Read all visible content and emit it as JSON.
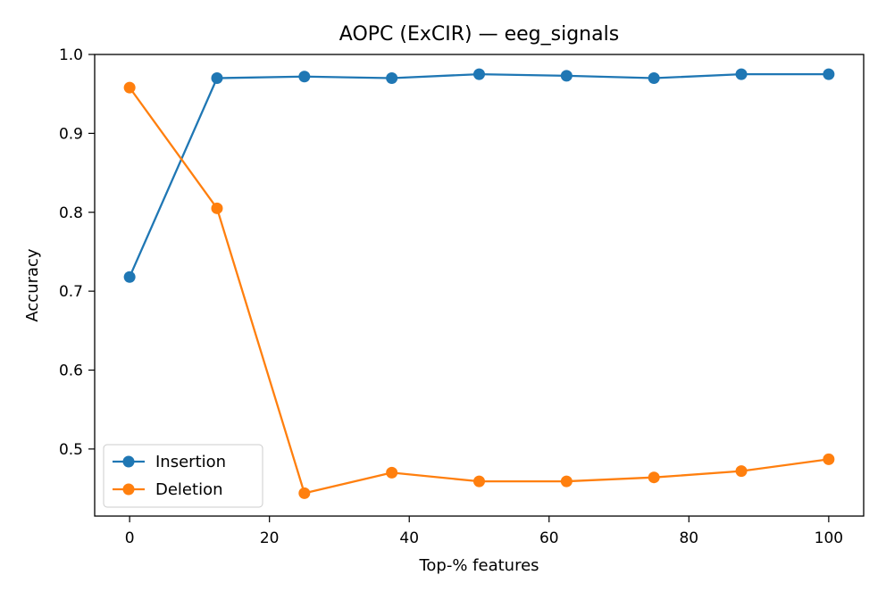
{
  "chart_data": {
    "type": "line",
    "title": "AOPC (ExCIR) — eeg_signals",
    "xlabel": "Top-% features",
    "ylabel": "Accuracy",
    "xlim": [
      -5,
      105
    ],
    "ylim": [
      0.415,
      1.0
    ],
    "x": [
      0,
      12.5,
      25,
      37.5,
      50,
      62.5,
      75,
      87.5,
      100
    ],
    "xticks": [
      0,
      20,
      40,
      60,
      80,
      100
    ],
    "yticks": [
      0.5,
      0.6,
      0.7,
      0.8,
      0.9,
      1.0
    ],
    "xtick_labels": [
      "0",
      "20",
      "40",
      "60",
      "80",
      "100"
    ],
    "ytick_labels": [
      "0.5",
      "0.6",
      "0.7",
      "0.8",
      "0.9",
      "1.0"
    ],
    "grid": false,
    "legend_position": "lower-left",
    "series": [
      {
        "name": "Insertion",
        "color": "#1f77b4",
        "values": [
          0.718,
          0.97,
          0.972,
          0.97,
          0.975,
          0.973,
          0.97,
          0.975,
          0.975
        ]
      },
      {
        "name": "Deletion",
        "color": "#ff7f0e",
        "values": [
          0.958,
          0.805,
          0.444,
          0.47,
          0.459,
          0.459,
          0.464,
          0.472,
          0.487
        ]
      }
    ]
  }
}
